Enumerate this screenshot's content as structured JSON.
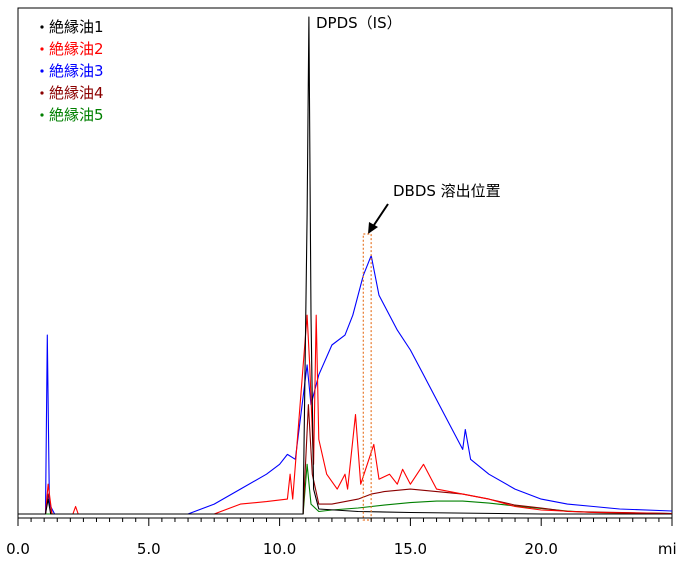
{
  "chart_data": {
    "type": "line",
    "xlabel": "",
    "ylabel": "",
    "x_unit": "min",
    "xlim": [
      0,
      25
    ],
    "ylim": [
      0,
      100
    ],
    "x_ticks": [
      "0.0",
      "5.0",
      "10.0",
      "15.0",
      "20.0"
    ],
    "grid": false,
    "legend_position": "top-left",
    "legend": [
      {
        "label": "絶縁油1",
        "color": "#000000"
      },
      {
        "label": "絶縁油2",
        "color": "#ff0000"
      },
      {
        "label": "絶縁油3",
        "color": "#0000ff"
      },
      {
        "label": "絶縁油4",
        "color": "#8b0000"
      },
      {
        "label": "絶縁油5",
        "color": "#008000"
      }
    ],
    "annotations": {
      "peak_label": "DPDS（IS）",
      "marker_label": "DBDS 溶出位置",
      "marker_x_range": [
        13.2,
        13.5
      ]
    },
    "series": [
      {
        "name": "絶縁油1",
        "color": "#000000",
        "points": [
          [
            0,
            0
          ],
          [
            1.05,
            0
          ],
          [
            1.15,
            3
          ],
          [
            1.25,
            0
          ],
          [
            5,
            0
          ],
          [
            10.9,
            0
          ],
          [
            11.05,
            60
          ],
          [
            11.12,
            100
          ],
          [
            11.2,
            40
          ],
          [
            11.3,
            5
          ],
          [
            11.5,
            1
          ],
          [
            13,
            0.5
          ],
          [
            15,
            0.3
          ],
          [
            20,
            0
          ],
          [
            25,
            0
          ]
        ]
      },
      {
        "name": "絶縁油2",
        "color": "#ff0000",
        "points": [
          [
            0,
            0
          ],
          [
            1.05,
            0
          ],
          [
            1.15,
            6
          ],
          [
            1.3,
            0
          ],
          [
            2.1,
            0
          ],
          [
            2.2,
            1.5
          ],
          [
            2.3,
            0
          ],
          [
            7.5,
            0
          ],
          [
            8.5,
            2
          ],
          [
            9.5,
            2.5
          ],
          [
            10.3,
            3
          ],
          [
            10.4,
            8
          ],
          [
            10.5,
            3
          ],
          [
            11.05,
            40
          ],
          [
            11.15,
            30
          ],
          [
            11.3,
            10
          ],
          [
            11.4,
            40
          ],
          [
            11.5,
            15
          ],
          [
            11.8,
            8
          ],
          [
            12.2,
            5
          ],
          [
            12.5,
            8
          ],
          [
            12.6,
            5
          ],
          [
            12.9,
            20
          ],
          [
            13.1,
            6
          ],
          [
            13.6,
            14
          ],
          [
            13.8,
            7
          ],
          [
            14.2,
            8
          ],
          [
            14.5,
            6
          ],
          [
            14.7,
            9
          ],
          [
            15,
            6
          ],
          [
            15.5,
            10
          ],
          [
            16,
            5
          ],
          [
            17,
            4
          ],
          [
            18,
            3
          ],
          [
            19,
            1.5
          ],
          [
            20,
            0.8
          ],
          [
            22,
            0.3
          ],
          [
            25,
            0.1
          ]
        ]
      },
      {
        "name": "絶縁油3",
        "color": "#0000ff",
        "points": [
          [
            0,
            0
          ],
          [
            1.05,
            0
          ],
          [
            1.12,
            36
          ],
          [
            1.2,
            2
          ],
          [
            1.4,
            0
          ],
          [
            6.5,
            0
          ],
          [
            7.5,
            2
          ],
          [
            8.5,
            5
          ],
          [
            9.5,
            8
          ],
          [
            10,
            10
          ],
          [
            10.3,
            12
          ],
          [
            10.6,
            11
          ],
          [
            11.05,
            30
          ],
          [
            11.2,
            22
          ],
          [
            11.5,
            28
          ],
          [
            12,
            34
          ],
          [
            12.5,
            36
          ],
          [
            12.8,
            40
          ],
          [
            13.2,
            48
          ],
          [
            13.5,
            52
          ],
          [
            13.8,
            44
          ],
          [
            14.2,
            40
          ],
          [
            14.5,
            37
          ],
          [
            15,
            33
          ],
          [
            15.5,
            28
          ],
          [
            16,
            23
          ],
          [
            16.5,
            18
          ],
          [
            17,
            13
          ],
          [
            17.1,
            17
          ],
          [
            17.3,
            11
          ],
          [
            18,
            8
          ],
          [
            19,
            5
          ],
          [
            20,
            3
          ],
          [
            21,
            2
          ],
          [
            22,
            1.5
          ],
          [
            23,
            1
          ],
          [
            25,
            0.6
          ]
        ]
      },
      {
        "name": "絶縁油4",
        "color": "#8b0000",
        "points": [
          [
            0,
            0
          ],
          [
            1.05,
            0
          ],
          [
            1.15,
            4
          ],
          [
            1.3,
            0
          ],
          [
            10.9,
            0
          ],
          [
            11.1,
            22
          ],
          [
            11.25,
            8
          ],
          [
            11.5,
            2
          ],
          [
            12,
            2
          ],
          [
            13,
            3
          ],
          [
            13.5,
            4
          ],
          [
            14,
            4.5
          ],
          [
            15,
            5
          ],
          [
            16,
            4.5
          ],
          [
            17,
            4
          ],
          [
            18,
            3
          ],
          [
            19,
            1.8
          ],
          [
            20,
            1.2
          ],
          [
            21,
            0.5
          ],
          [
            25,
            0.1
          ]
        ]
      },
      {
        "name": "絶縁油5",
        "color": "#008000",
        "points": [
          [
            0,
            0
          ],
          [
            10.9,
            0
          ],
          [
            11.05,
            10
          ],
          [
            11.2,
            2
          ],
          [
            11.5,
            0.5
          ],
          [
            12,
            0.8
          ],
          [
            13,
            1.2
          ],
          [
            14,
            1.8
          ],
          [
            15,
            2.3
          ],
          [
            16,
            2.6
          ],
          [
            17,
            2.6
          ],
          [
            18,
            2.2
          ],
          [
            19,
            1.6
          ],
          [
            20,
            1.1
          ],
          [
            21,
            0.6
          ],
          [
            22,
            0.3
          ],
          [
            25,
            0.1
          ]
        ]
      }
    ]
  }
}
